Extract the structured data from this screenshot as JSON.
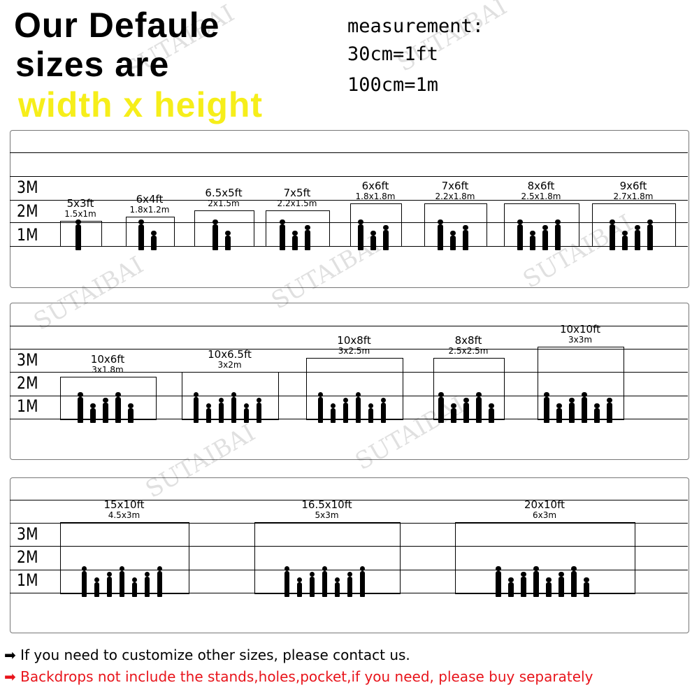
{
  "header": {
    "line1": "Our Defaule",
    "line2": "sizes are",
    "line3": "width x height"
  },
  "measurement": {
    "title": "measurement:",
    "line1": "30cm=1ft",
    "line2": "100cm=1m"
  },
  "scale_labels": [
    "3M",
    "2M",
    "1M"
  ],
  "watermark": "SUTAIBAI",
  "panels": [
    {
      "sizes": [
        {
          "ft": "5x3ft",
          "m": "1.5x1m"
        },
        {
          "ft": "6x4ft",
          "m": "1.8x1.2m"
        },
        {
          "ft": "6.5x5ft",
          "m": "2x1.5m"
        },
        {
          "ft": "7x5ft",
          "m": "2.2x1.5m"
        },
        {
          "ft": "6x6ft",
          "m": "1.8x1.8m"
        },
        {
          "ft": "7x6ft",
          "m": "2.2x1.8m"
        },
        {
          "ft": "8x6ft",
          "m": "2.5x1.8m"
        },
        {
          "ft": "9x6ft",
          "m": "2.7x1.8m"
        }
      ]
    },
    {
      "sizes": [
        {
          "ft": "10x6ft",
          "m": "3x1.8m"
        },
        {
          "ft": "10x6.5ft",
          "m": "3x2m"
        },
        {
          "ft": "10x8ft",
          "m": "3x2.5m"
        },
        {
          "ft": "8x8ft",
          "m": "2.5x2.5m"
        },
        {
          "ft": "10x10ft",
          "m": "3x3m"
        }
      ]
    },
    {
      "sizes": [
        {
          "ft": "15x10ft",
          "m": "4.5x3m"
        },
        {
          "ft": "16.5x10ft",
          "m": "5x3m"
        },
        {
          "ft": "20x10ft",
          "m": "6x3m"
        }
      ]
    }
  ],
  "notes": {
    "custom": "If you need to customize other sizes, please contact us.",
    "stands": "Backdrops not include the stands,holes,pocket,if you need, please buy separately",
    "arrow_icon": "right-arrow-icon",
    "custom_color": "#000000",
    "stands_color": "#e8141b"
  }
}
